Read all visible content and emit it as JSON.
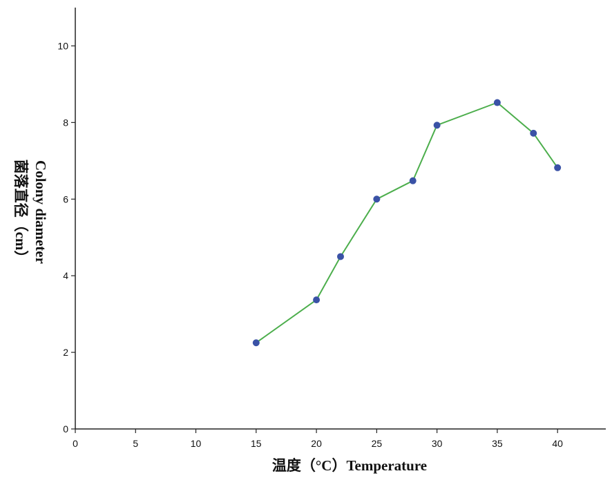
{
  "chart_data": {
    "type": "line",
    "title": "",
    "xlabel": "温度（°C）Temperature",
    "ylabel_lines": [
      "Colony diameter",
      "菌落直径（cm）"
    ],
    "xlim": [
      0,
      44
    ],
    "ylim": [
      0,
      11
    ],
    "xticks": [
      0,
      5,
      10,
      15,
      20,
      25,
      30,
      35,
      40
    ],
    "yticks": [
      0,
      2,
      4,
      6,
      8,
      10
    ],
    "grid": false,
    "legend": "none",
    "line_color": "#4cae4c",
    "marker_color": "#3a52a6",
    "series": [
      {
        "x": [
          15,
          20,
          22,
          25,
          28,
          30,
          35,
          38,
          40
        ],
        "y": [
          2.25,
          3.37,
          4.5,
          6.0,
          6.48,
          7.93,
          8.52,
          7.72,
          6.82
        ]
      }
    ]
  }
}
